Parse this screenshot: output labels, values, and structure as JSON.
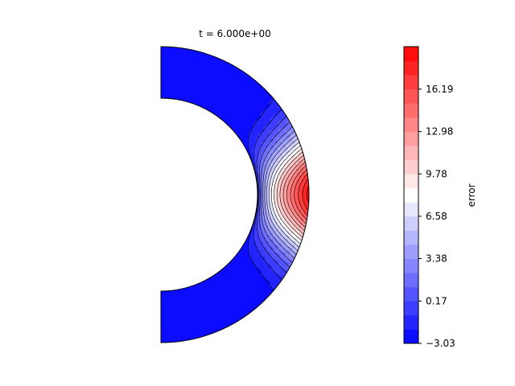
{
  "chart_data": {
    "type": "heatmap",
    "title": "t = 6.000e+00",
    "domain": "half-annulus (shell cross-section)",
    "colorbar": {
      "label": "error",
      "tick_labels": [
        "−3.03",
        "0.17",
        "3.38",
        "6.58",
        "9.78",
        "12.98",
        "16.19"
      ],
      "tick_values": [
        -3.03,
        0.17,
        3.38,
        6.58,
        9.78,
        12.98,
        16.19
      ],
      "range": [
        -3.03,
        19.4
      ],
      "levels": 21,
      "colormap": "bwr"
    },
    "field_extent": {
      "min": -3.03,
      "max": 19.4
    },
    "features": [
      {
        "region": "upper interior near axis",
        "sign": "negative",
        "value": -3.03
      },
      {
        "region": "lower interior near axis",
        "sign": "negative",
        "value": -3.03
      },
      {
        "region": "equatorial outer shell",
        "sign": "positive",
        "value": 19.4
      }
    ]
  }
}
